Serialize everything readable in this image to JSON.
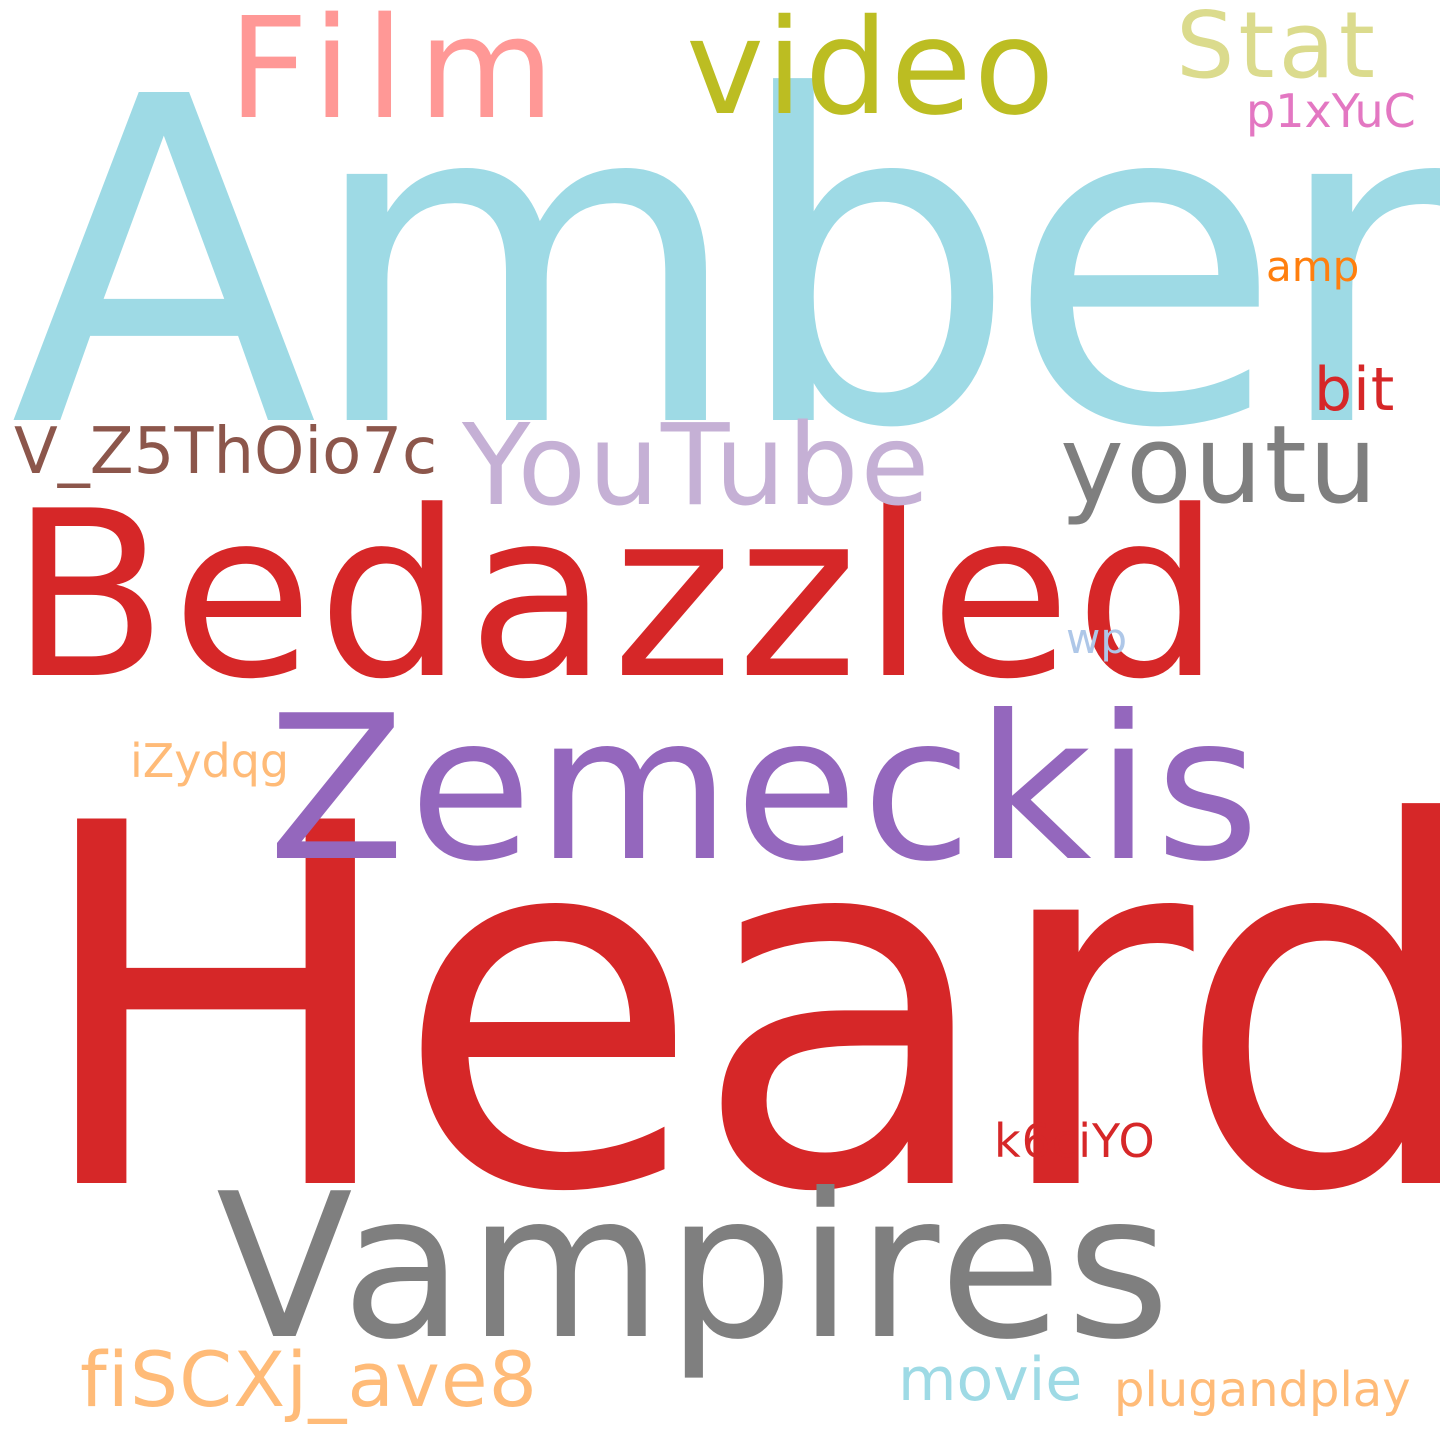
{
  "words": [
    {
      "id": "amber",
      "text": "Amber",
      "color": "#9edae5"
    },
    {
      "id": "heard",
      "text": "Heard",
      "color": "#d62728"
    },
    {
      "id": "bedazzled",
      "text": "Bedazzled",
      "color": "#d62728"
    },
    {
      "id": "zemeckis",
      "text": "Zemeckis",
      "color": "#9467bd"
    },
    {
      "id": "vampires",
      "text": "Vampires",
      "color": "#7f7f7f"
    },
    {
      "id": "film",
      "text": "Film",
      "color": "#ff9896"
    },
    {
      "id": "video",
      "text": "video",
      "color": "#bcbd22"
    },
    {
      "id": "stat",
      "text": "Stat",
      "color": "#dbdb8d"
    },
    {
      "id": "youtube",
      "text": "YouTube",
      "color": "#c5b0d5"
    },
    {
      "id": "youtu",
      "text": "youtu",
      "color": "#7f7f7f"
    },
    {
      "id": "v_z5",
      "text": "V_Z5ThOio7c",
      "color": "#8c564b"
    },
    {
      "id": "bit",
      "text": "bit",
      "color": "#d62728"
    },
    {
      "id": "amp",
      "text": "amp",
      "color": "#ff7f0e"
    },
    {
      "id": "p1x",
      "text": "p1xYuC",
      "color": "#e377c2"
    },
    {
      "id": "wp",
      "text": "wp",
      "color": "#aec7e8"
    },
    {
      "id": "izydqg",
      "text": "iZydqg",
      "color": "#ffbb78"
    },
    {
      "id": "k6ciyo",
      "text": "k6ciYO",
      "color": "#d62728"
    },
    {
      "id": "fiscxj",
      "text": "fiSCXj_ave8",
      "color": "#ffbb78"
    },
    {
      "id": "movie",
      "text": "movie",
      "color": "#9edae5"
    },
    {
      "id": "plugandplay",
      "text": "plugandplay",
      "color": "#ffbb78"
    }
  ]
}
